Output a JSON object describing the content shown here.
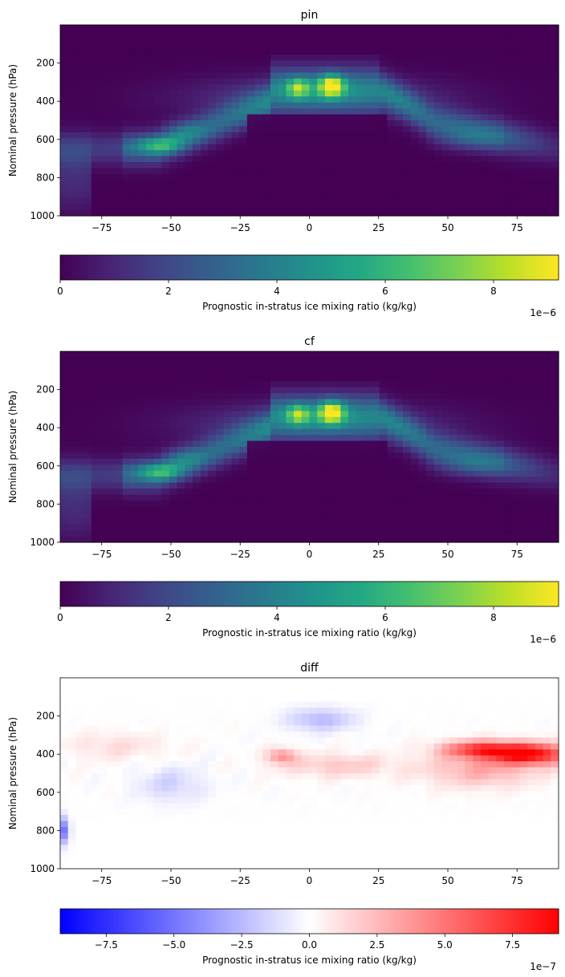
{
  "chart_data": [
    {
      "type": "heatmap",
      "title": "pin",
      "ylabel": "Nominal pressure (hPa)",
      "xlabel": "",
      "xlim": [
        -90,
        90
      ],
      "ylim": [
        1000,
        0
      ],
      "xticks": [
        -75,
        -50,
        -25,
        0,
        25,
        50,
        75
      ],
      "yticks": [
        200,
        400,
        600,
        800,
        1000
      ],
      "colormap": "viridis",
      "colorbar": {
        "label": "Prognostic in-stratus ice mixing ratio (kg/kg)",
        "range": [
          0,
          9.2e-06
        ],
        "ticks": [
          0,
          2,
          4,
          6,
          8
        ],
        "offset": "1e−6",
        "orientation": "horizontal"
      },
      "features": [
        {
          "lat": 8,
          "pressure": 320,
          "value": 9.2e-06
        },
        {
          "lat": -4,
          "pressure": 330,
          "value": 6.8e-06
        },
        {
          "lat": -54,
          "pressure": 630,
          "value": 6.2e-06
        },
        {
          "lat": -30,
          "pressure": 430,
          "value": 3.5e-06
        },
        {
          "lat": 40,
          "pressure": 500,
          "value": 3.5e-06
        },
        {
          "lat": 60,
          "pressure": 620,
          "value": 3.2e-06
        },
        {
          "lat": -88,
          "pressure": 850,
          "value": 1e-06
        }
      ]
    },
    {
      "type": "heatmap",
      "title": "cf",
      "ylabel": "Nominal pressure (hPa)",
      "xlabel": "",
      "xlim": [
        -90,
        90
      ],
      "ylim": [
        1000,
        0
      ],
      "xticks": [
        -75,
        -50,
        -25,
        0,
        25,
        50,
        75
      ],
      "yticks": [
        200,
        400,
        600,
        800,
        1000
      ],
      "colormap": "viridis",
      "colorbar": {
        "label": "Prognostic in-stratus ice mixing ratio (kg/kg)",
        "range": [
          0,
          9.2e-06
        ],
        "ticks": [
          0,
          2,
          4,
          6,
          8
        ],
        "offset": "1e−6",
        "orientation": "horizontal"
      },
      "features": [
        {
          "lat": 8,
          "pressure": 320,
          "value": 9e-06
        },
        {
          "lat": -4,
          "pressure": 330,
          "value": 7e-06
        },
        {
          "lat": -54,
          "pressure": 630,
          "value": 6.6e-06
        },
        {
          "lat": -30,
          "pressure": 430,
          "value": 3.5e-06
        },
        {
          "lat": 40,
          "pressure": 500,
          "value": 3.5e-06
        },
        {
          "lat": 60,
          "pressure": 620,
          "value": 3e-06
        },
        {
          "lat": -88,
          "pressure": 850,
          "value": 1e-06
        }
      ]
    },
    {
      "type": "heatmap",
      "title": "diff",
      "ylabel": "Nominal pressure (hPa)",
      "xlabel": "",
      "xlim": [
        -90,
        90
      ],
      "ylim": [
        1000,
        0
      ],
      "xticks": [
        -75,
        -50,
        -25,
        0,
        25,
        50,
        75
      ],
      "yticks": [
        200,
        400,
        600,
        800,
        1000
      ],
      "colormap": "bwr",
      "colorbar": {
        "label": "Prognostic in-stratus ice mixing ratio (kg/kg)",
        "range": [
          -9.2e-07,
          9.2e-07
        ],
        "ticks": [
          "−7.5",
          "−5.0",
          "−2.5",
          "0.0",
          "2.5",
          "5.0",
          "7.5"
        ],
        "tick_values": [
          -7.5,
          -5.0,
          -2.5,
          0.0,
          2.5,
          5.0,
          7.5
        ],
        "offset": "1e−7",
        "orientation": "horizontal"
      },
      "features": [
        {
          "lat": 80,
          "pressure": 400,
          "value": 9e-07
        },
        {
          "lat": 65,
          "pressure": 390,
          "value": 7.5e-07
        },
        {
          "lat": -10,
          "pressure": 420,
          "value": 4.5e-07
        },
        {
          "lat": 10,
          "pressure": 460,
          "value": 2.5e-07
        },
        {
          "lat": -70,
          "pressure": 350,
          "value": 1e-07
        },
        {
          "lat": 5,
          "pressure": 220,
          "value": -2.5e-07
        },
        {
          "lat": -50,
          "pressure": 560,
          "value": -1.5e-07
        },
        {
          "lat": -89,
          "pressure": 810,
          "value": -5e-07
        }
      ]
    }
  ]
}
